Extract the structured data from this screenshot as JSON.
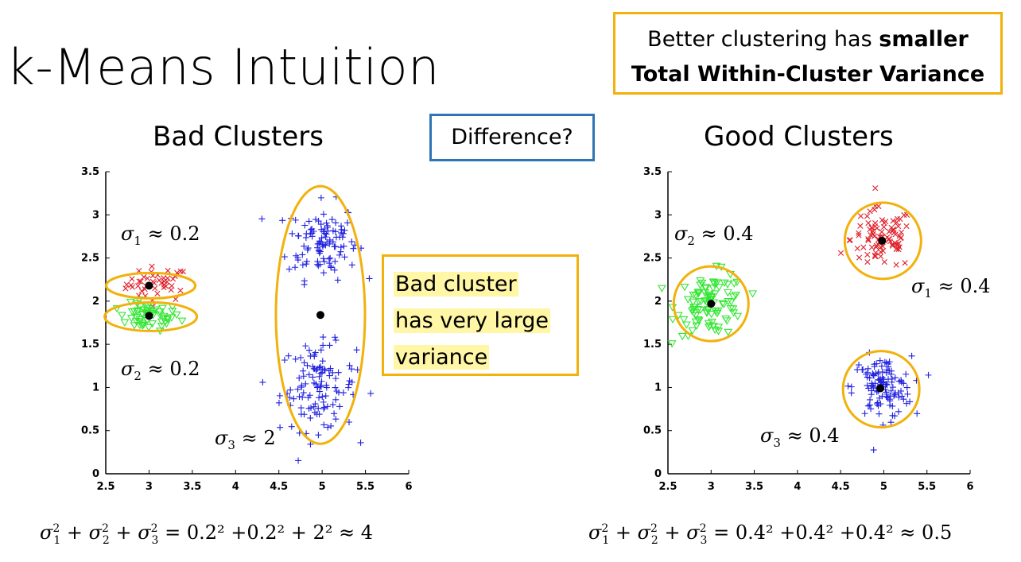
{
  "slide": {
    "title": "k-Means Intuition",
    "top_callout_line1_prefix": "Better clustering has ",
    "top_callout_line1_bold": "smaller",
    "top_callout_line2_bold": "Total Within-Cluster Variance",
    "difference_label": "Difference?",
    "bad_title": "Bad Clusters",
    "good_title": "Good Clusters",
    "bad_callout_lines": [
      "Bad cluster",
      "has very large",
      "variance"
    ]
  },
  "bad_sigmas": {
    "s1": {
      "sym": "σ",
      "sub": "1",
      "approx": "≈",
      "val": "0.2"
    },
    "s2": {
      "sym": "σ",
      "sub": "2",
      "approx": "≈",
      "val": "0.2"
    },
    "s3": {
      "sym": "σ",
      "sub": "3",
      "approx": "≈",
      "val": "2"
    }
  },
  "good_sigmas": {
    "s1": {
      "sym": "σ",
      "sub": "1",
      "approx": "≈",
      "val": "0.4"
    },
    "s2": {
      "sym": "σ",
      "sub": "2",
      "approx": "≈",
      "val": "0.4"
    },
    "s3": {
      "sym": "σ",
      "sub": "3",
      "approx": "≈",
      "val": "0.4"
    }
  },
  "equations": {
    "bad_rhs": "= 0.2² +0.2² + 2² ≈ 4",
    "good_rhs": "= 0.4² +0.4² +0.4² ≈ 0.5"
  },
  "chart_data": [
    {
      "type": "scatter",
      "title": "Bad Clusters",
      "xlim": [
        2.5,
        6
      ],
      "ylim": [
        0,
        3.5
      ],
      "xticks": [
        "2.5",
        "3",
        "3.5",
        "4",
        "4.5",
        "5",
        "5.5",
        "6"
      ],
      "yticks": [
        "0",
        "0.5",
        "1",
        "1.5",
        "2",
        "2.5",
        "3",
        "3.5"
      ],
      "marker_colors": {
        "x": "#e0202a",
        "triangle": "#33e633",
        "plus": "#2020e0"
      },
      "ellipse_color": "#f2b10b",
      "centroids": [
        [
          3.0,
          2.18
        ],
        [
          3.0,
          1.83
        ],
        [
          4.98,
          1.84
        ]
      ]
    },
    {
      "type": "scatter",
      "title": "Good Clusters",
      "xlim": [
        2.5,
        6
      ],
      "ylim": [
        0,
        3.5
      ],
      "xticks": [
        "2.5",
        "3",
        "3.5",
        "4",
        "4.5",
        "5",
        "5.5",
        "6"
      ],
      "yticks": [
        "0",
        "0.5",
        "1",
        "1.5",
        "2",
        "2.5",
        "3",
        "3.5"
      ],
      "marker_colors": {
        "x": "#e0202a",
        "triangle": "#33e633",
        "plus": "#2020e0"
      },
      "ellipse_color": "#f2b10b",
      "centroids": [
        [
          4.98,
          2.7
        ],
        [
          3.0,
          1.97
        ],
        [
          4.96,
          0.99
        ]
      ]
    }
  ]
}
